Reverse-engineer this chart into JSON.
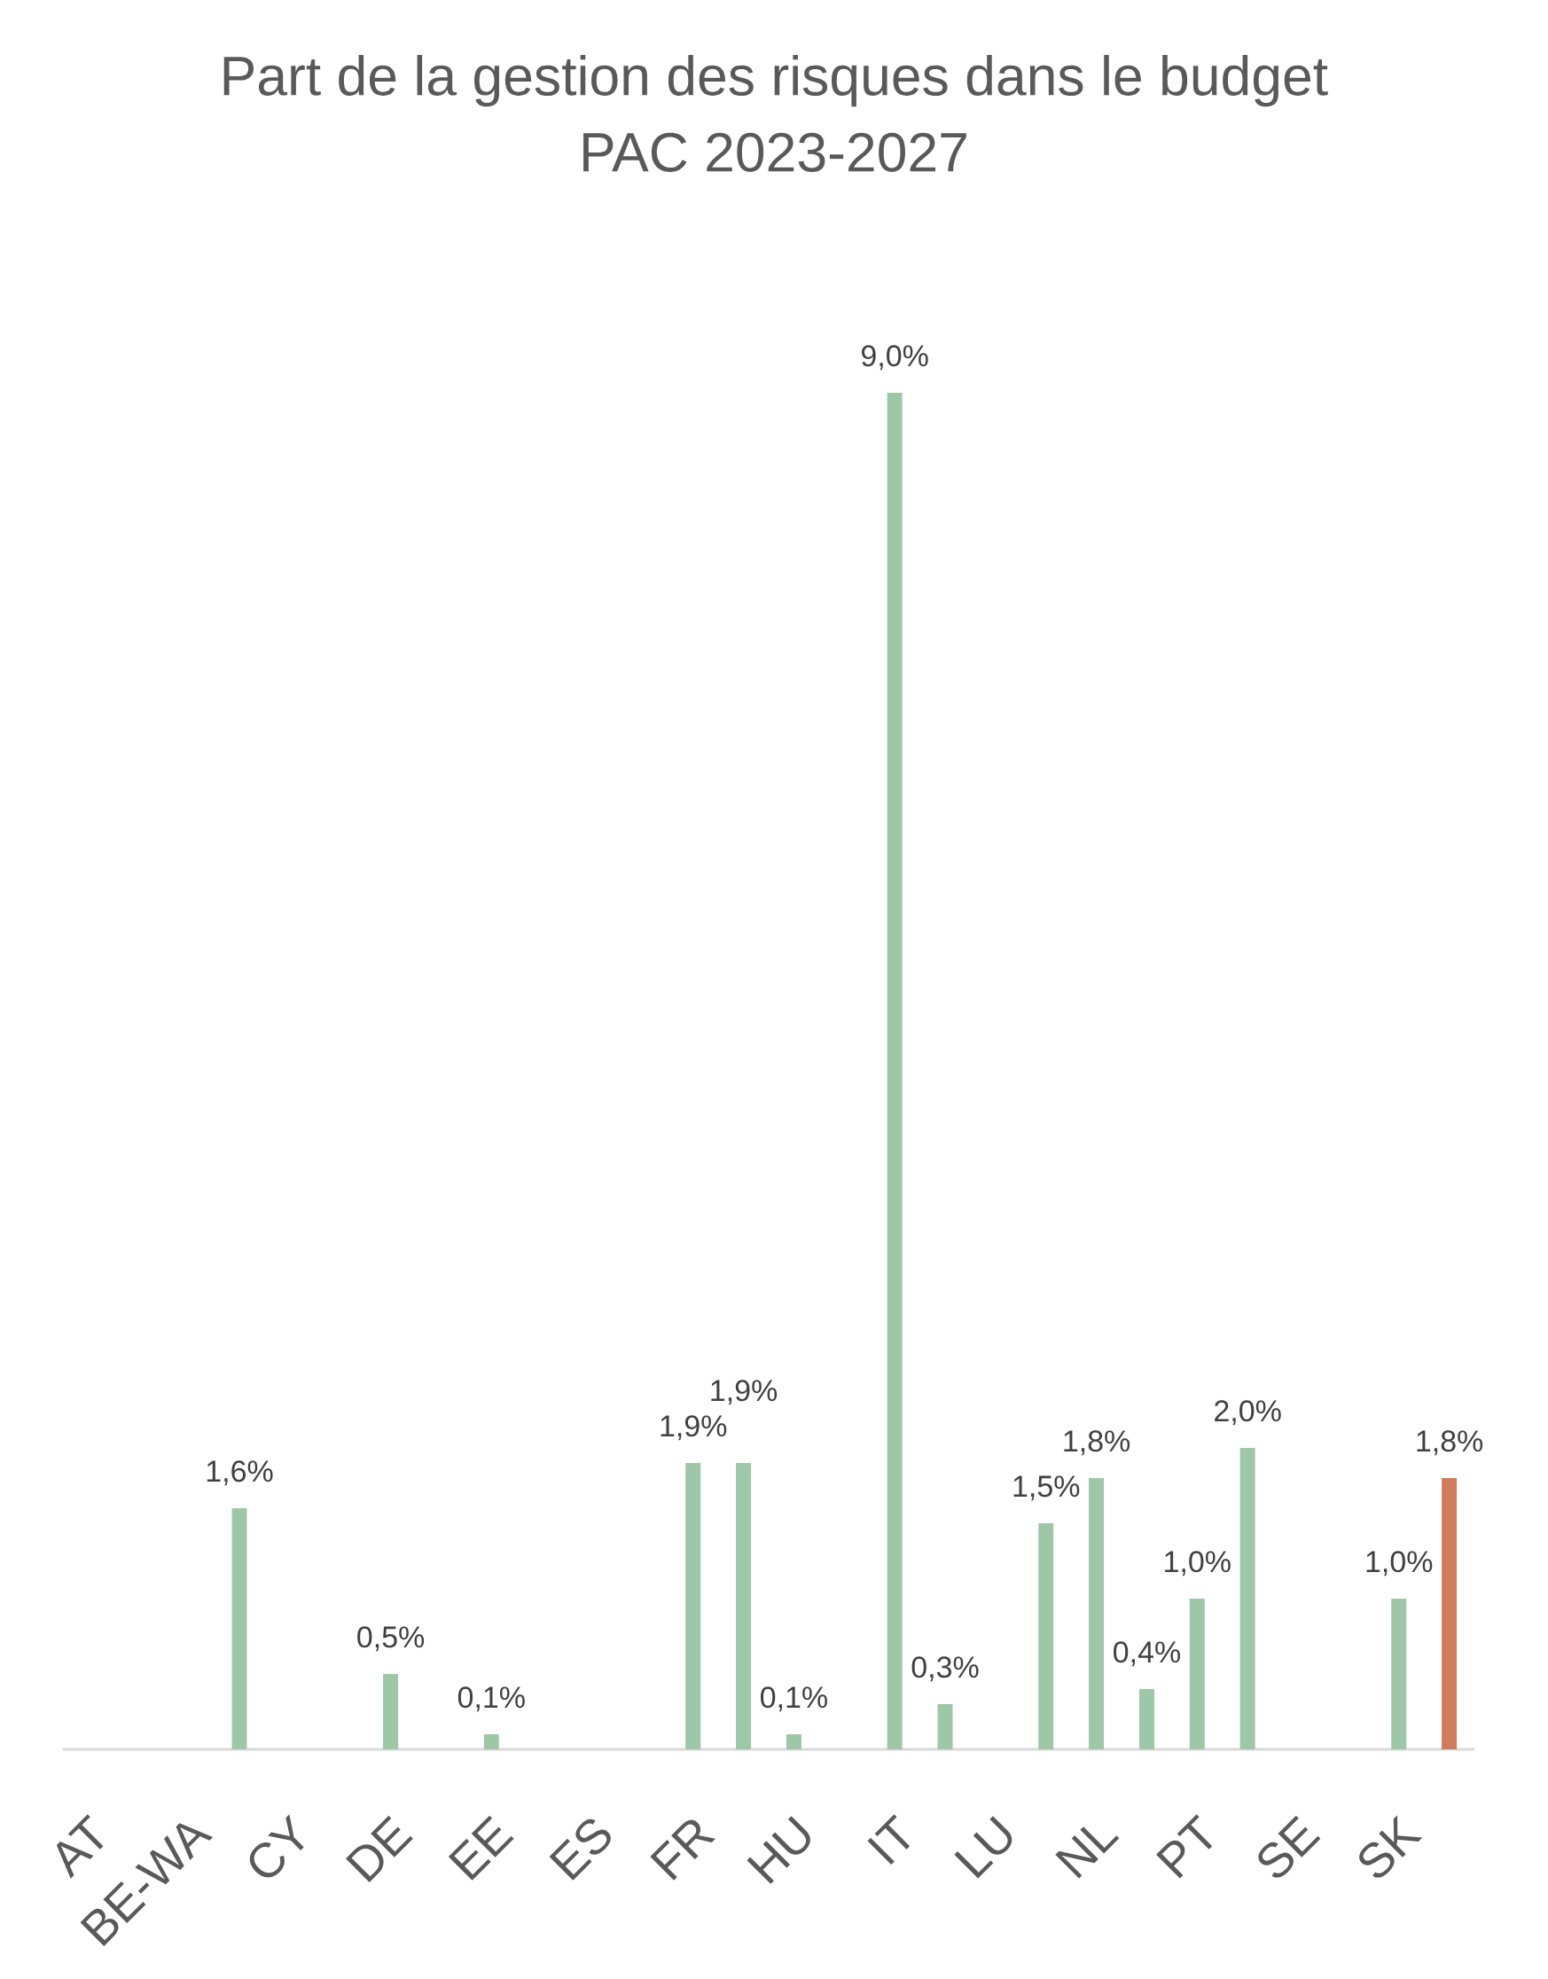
{
  "chart_data": {
    "type": "bar",
    "title": "Part de la gestion des risques dans le budget PAC 2023-2027",
    "categories": [
      "AT",
      null,
      "BE-WA",
      null,
      "CY",
      null,
      "DE",
      null,
      "EE",
      null,
      "ES",
      null,
      "FR",
      null,
      "HU",
      null,
      "IT",
      null,
      "LU",
      null,
      "NL",
      null,
      "PT",
      null,
      "SE",
      null,
      "SK",
      null
    ],
    "values": [
      null,
      null,
      null,
      1.6,
      null,
      null,
      0.5,
      null,
      0.1,
      null,
      null,
      null,
      1.9,
      1.9,
      0.1,
      null,
      9.0,
      0.3,
      null,
      1.5,
      1.8,
      0.4,
      1.0,
      2.0,
      null,
      null,
      1.0,
      1.8
    ],
    "colors": [
      null,
      null,
      null,
      "#9dc7a6",
      null,
      null,
      "#9dc7a6",
      null,
      "#9dc7a6",
      null,
      null,
      null,
      "#9dc7a6",
      "#9dc7a6",
      "#9dc7a6",
      null,
      "#9dc7a6",
      "#9dc7a6",
      null,
      "#9dc7a6",
      "#9dc7a6",
      "#9dc7a6",
      "#9dc7a6",
      "#9dc7a6",
      null,
      null,
      "#9dc7a6",
      "#d07b5c"
    ],
    "value_labels": [
      null,
      null,
      null,
      "1,6%",
      null,
      null,
      "0,5%",
      null,
      "0,1%",
      null,
      null,
      null,
      "1,9%",
      "1,9%",
      "0,1%",
      null,
      "9,0%",
      "0,3%",
      null,
      "1,5%",
      "1,8%",
      "0,4%",
      "1,0%",
      "2,0%",
      null,
      null,
      "1,0%",
      "1,8%"
    ]
  }
}
